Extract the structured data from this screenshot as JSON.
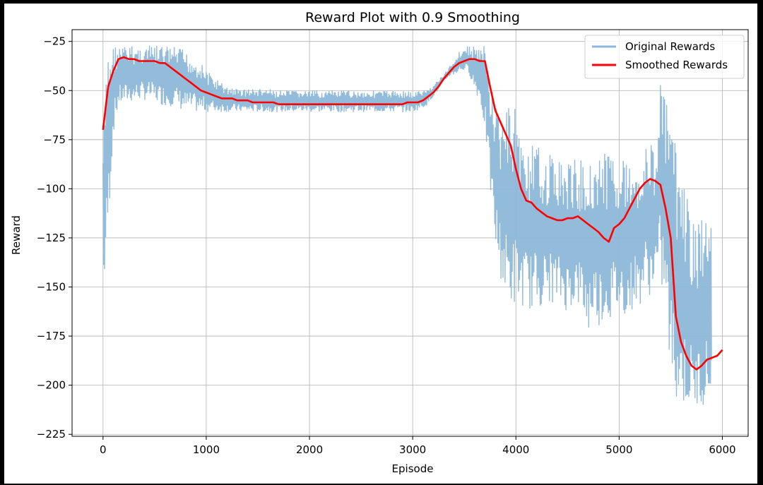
{
  "chart_data": {
    "type": "line",
    "title": "Reward Plot with 0.9 Smoothing",
    "xlabel": "Episode",
    "ylabel": "Reward",
    "xlim": [
      -300,
      6250
    ],
    "ylim": [
      -226,
      -19
    ],
    "x_ticks": [
      0,
      1000,
      2000,
      3000,
      4000,
      5000,
      6000
    ],
    "x_tick_labels": [
      "0",
      "1000",
      "2000",
      "3000",
      "4000",
      "5000",
      "6000"
    ],
    "y_ticks": [
      -25,
      -50,
      -75,
      -100,
      -125,
      -150,
      -175,
      -200,
      -225
    ],
    "y_tick_labels": [
      "−25",
      "−50",
      "−75",
      "−100",
      "−125",
      "−150",
      "−175",
      "−200",
      "−225"
    ],
    "grid": true,
    "legend_position": "top-right",
    "x_step": 50,
    "series": [
      {
        "name": "Original Rewards",
        "color": "#8db7d8",
        "band": true,
        "x_start": 0,
        "upper": [
          -72,
          -26,
          -26,
          -27,
          -27,
          -27,
          -27,
          -27,
          -27,
          -27,
          -27,
          -27,
          -27,
          -27,
          -28,
          -28,
          -30,
          -32,
          -34,
          -36,
          -39,
          -42,
          -44,
          -46,
          -48,
          -48,
          -49,
          -49,
          -49,
          -49,
          -49,
          -49,
          -49,
          -50,
          -50,
          -50,
          -50,
          -50,
          -50,
          -50,
          -50,
          -50,
          -50,
          -50,
          -50,
          -50,
          -50,
          -50,
          -50,
          -50,
          -50,
          -50,
          -50,
          -50,
          -50,
          -50,
          -50,
          -50,
          -50,
          -50,
          -51,
          -50,
          -50,
          -49,
          -47,
          -44,
          -42,
          -38,
          -34,
          -30,
          -28,
          -27,
          -27,
          -27,
          -27,
          -46,
          -55,
          -62,
          -58,
          -58,
          -55,
          -75,
          -76,
          -78,
          -78,
          -80,
          -82,
          -82,
          -84,
          -84,
          -86,
          -85,
          -85,
          -85,
          -85,
          -83,
          -80,
          -82,
          -80,
          -80,
          -82,
          -84,
          -86,
          -84,
          -85,
          -78,
          -76,
          -80,
          -40,
          -55,
          -62,
          -80,
          -95,
          -100,
          -115,
          -120,
          -115,
          -110,
          -120
        ],
        "lower": [
          -160,
          -122,
          -72,
          -58,
          -57,
          -56,
          -56,
          -55,
          -55,
          -55,
          -56,
          -57,
          -58,
          -58,
          -58,
          -60,
          -61,
          -61,
          -61,
          -61,
          -61,
          -61,
          -61,
          -61,
          -61,
          -61,
          -61,
          -61,
          -61,
          -61,
          -61,
          -61,
          -61,
          -61,
          -61,
          -61,
          -61,
          -61,
          -61,
          -61,
          -61,
          -61,
          -61,
          -61,
          -61,
          -61,
          -61,
          -61,
          -61,
          -61,
          -61,
          -61,
          -61,
          -61,
          -61,
          -61,
          -61,
          -61,
          -61,
          -61,
          -61,
          -60,
          -59,
          -57,
          -53,
          -50,
          -46,
          -43,
          -42,
          -41,
          -40,
          -42,
          -50,
          -56,
          -70,
          -100,
          -130,
          -145,
          -155,
          -160,
          -160,
          -160,
          -160,
          -162,
          -160,
          -160,
          -158,
          -158,
          -160,
          -160,
          -163,
          -160,
          -160,
          -165,
          -175,
          -165,
          -170,
          -168,
          -168,
          -165,
          -163,
          -165,
          -165,
          -158,
          -160,
          -150,
          -155,
          -148,
          -150,
          -160,
          -200,
          -207,
          -210,
          -212,
          -213,
          -213,
          -210,
          -210,
          -208
        ]
      },
      {
        "name": "Smoothed Rewards",
        "color": "#ff0000",
        "band": false,
        "x_start": 0,
        "values": [
          -70,
          -48,
          -40,
          -34,
          -33,
          -34,
          -34,
          -35,
          -35,
          -35,
          -35,
          -36,
          -36,
          -38,
          -40,
          -42,
          -44,
          -46,
          -48,
          -50,
          -51,
          -52,
          -53,
          -54,
          -54,
          -54,
          -55,
          -55,
          -55,
          -56,
          -56,
          -56,
          -56,
          -56,
          -57,
          -57,
          -57,
          -57,
          -57,
          -57,
          -57,
          -57,
          -57,
          -57,
          -57,
          -57,
          -57,
          -57,
          -57,
          -57,
          -57,
          -57,
          -57,
          -57,
          -57,
          -57,
          -57,
          -57,
          -57,
          -56,
          -56,
          -56,
          -55,
          -53,
          -51,
          -48,
          -44,
          -41,
          -38,
          -36,
          -35,
          -34,
          -34,
          -35,
          -35,
          -48,
          -60,
          -66,
          -72,
          -78,
          -90,
          -100,
          -106,
          -107,
          -110,
          -112,
          -114,
          -115,
          -116,
          -116,
          -115,
          -115,
          -114,
          -116,
          -118,
          -120,
          -122,
          -125,
          -127,
          -120,
          -118,
          -115,
          -110,
          -105,
          -100,
          -97,
          -95,
          -96,
          -98,
          -110,
          -125,
          -165,
          -178,
          -185,
          -190,
          -192,
          -190,
          -187,
          -186,
          -185,
          -182
        ]
      }
    ]
  }
}
